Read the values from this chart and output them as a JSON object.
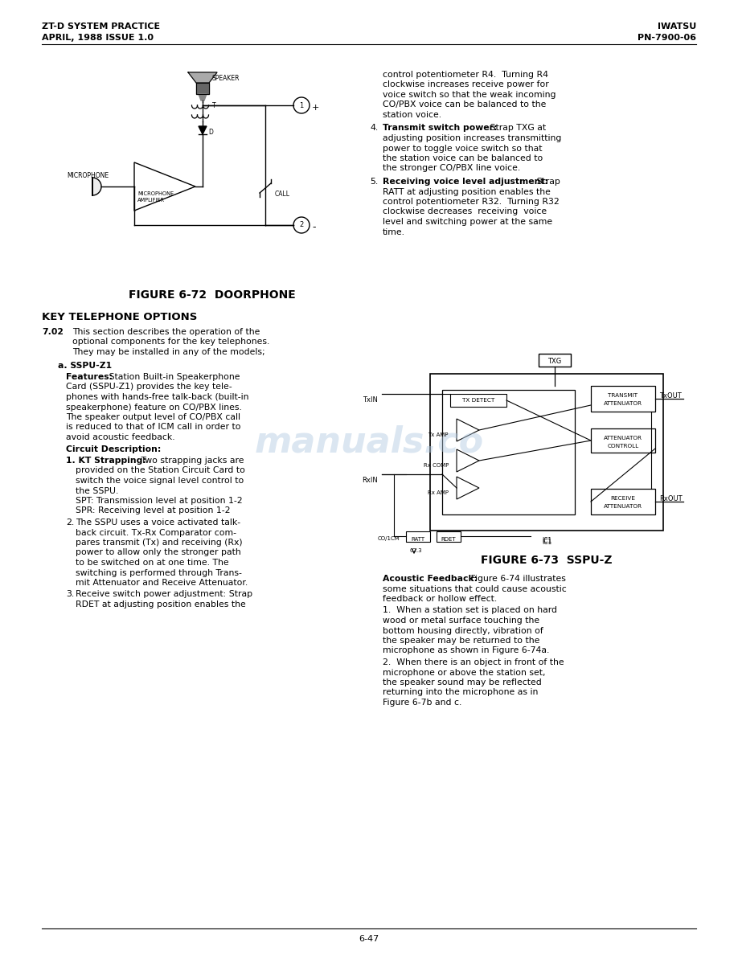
{
  "page_width": 9.18,
  "page_height": 11.88,
  "bg_color": "#ffffff",
  "header_left_line1": "ZT-D SYSTEM PRACTICE",
  "header_left_line2": "APRIL, 1988 ISSUE 1.0",
  "header_right_line1": "IWATSU",
  "header_right_line2": "PN-7900-06",
  "footer_text": "6-47",
  "figure1_caption": "FIGURE 6-72  DOORPHONE",
  "figure2_caption": "FIGURE 6-73  SSPU-Z",
  "section_title": "KEY TELEPHONE OPTIONS",
  "watermark_text": "manuals.co"
}
